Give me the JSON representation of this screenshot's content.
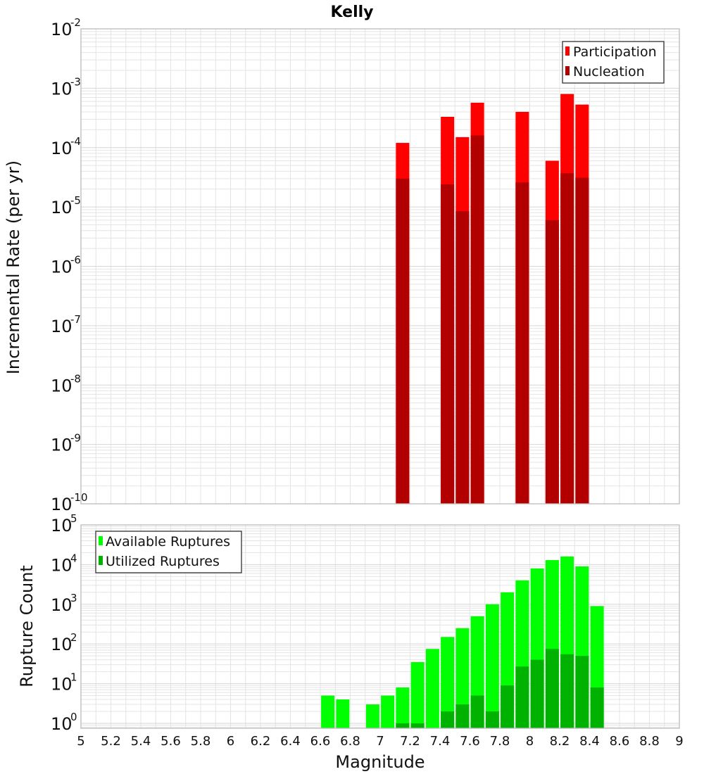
{
  "title": "Kelly",
  "colors": {
    "participation": "#ff0000",
    "nucleation": "#b20000",
    "available": "#00ff00",
    "utilized": "#00b200",
    "grid": "#e4e4e4",
    "frame": "#bbbbbb"
  },
  "chart_data": [
    {
      "type": "bar",
      "title": "Kelly",
      "xlabel": "",
      "ylabel": "Incremental Rate (per yr)",
      "yscale": "log",
      "ylim": [
        1e-10,
        0.01
      ],
      "xlim": [
        5,
        9
      ],
      "ytick_exponents": [
        "-10",
        "-9",
        "-8",
        "-7",
        "-6",
        "-5",
        "-4",
        "-3",
        "-2"
      ],
      "legend": {
        "position": "top-right",
        "entries": [
          "Participation",
          "Nucleation"
        ]
      },
      "x": [
        7.15,
        7.45,
        7.55,
        7.65,
        7.95,
        8.15,
        8.25,
        8.35
      ],
      "series": [
        {
          "name": "Participation",
          "values": [
            0.00012,
            0.00033,
            0.00015,
            0.00057,
            0.0004,
            6e-05,
            0.0008,
            0.00053
          ]
        },
        {
          "name": "Nucleation",
          "values": [
            3e-05,
            2.4e-05,
            8.5e-06,
            0.00016,
            2.6e-05,
            6e-06,
            3.7e-05,
            3.1e-05
          ]
        }
      ]
    },
    {
      "type": "bar",
      "xlabel": "Magnitude",
      "ylabel": "Rupture Count",
      "yscale": "log",
      "ylim": [
        0.75,
        100000.0
      ],
      "xlim": [
        5,
        9
      ],
      "ytick_exponents": [
        "0",
        "1",
        "2",
        "3",
        "4",
        "5"
      ],
      "xtick_labels": [
        "5",
        "5.2",
        "5.4",
        "5.6",
        "5.8",
        "6",
        "6.2",
        "6.4",
        "6.6",
        "6.8",
        "7",
        "7.2",
        "7.4",
        "7.6",
        "7.8",
        "8",
        "8.2",
        "8.4",
        "8.6",
        "8.8",
        "9"
      ],
      "legend": {
        "position": "top-left",
        "entries": [
          "Available Ruptures",
          "Utilized Ruptures"
        ]
      },
      "x": [
        6.65,
        6.75,
        6.95,
        7.05,
        7.15,
        7.25,
        7.35,
        7.45,
        7.55,
        7.65,
        7.75,
        7.85,
        7.95,
        8.05,
        8.15,
        8.25,
        8.35,
        8.45
      ],
      "series": [
        {
          "name": "Available Ruptures",
          "values": [
            5,
            4,
            3,
            5,
            8,
            35,
            75,
            150,
            250,
            500,
            1000,
            2000,
            4000,
            8000,
            13000,
            16000,
            9000,
            900
          ]
        },
        {
          "name": "Utilized Ruptures",
          "values": [
            0,
            0,
            0,
            0,
            1,
            1,
            0,
            2,
            3,
            5,
            2,
            9,
            27,
            40,
            75,
            55,
            50,
            8
          ]
        }
      ]
    }
  ]
}
